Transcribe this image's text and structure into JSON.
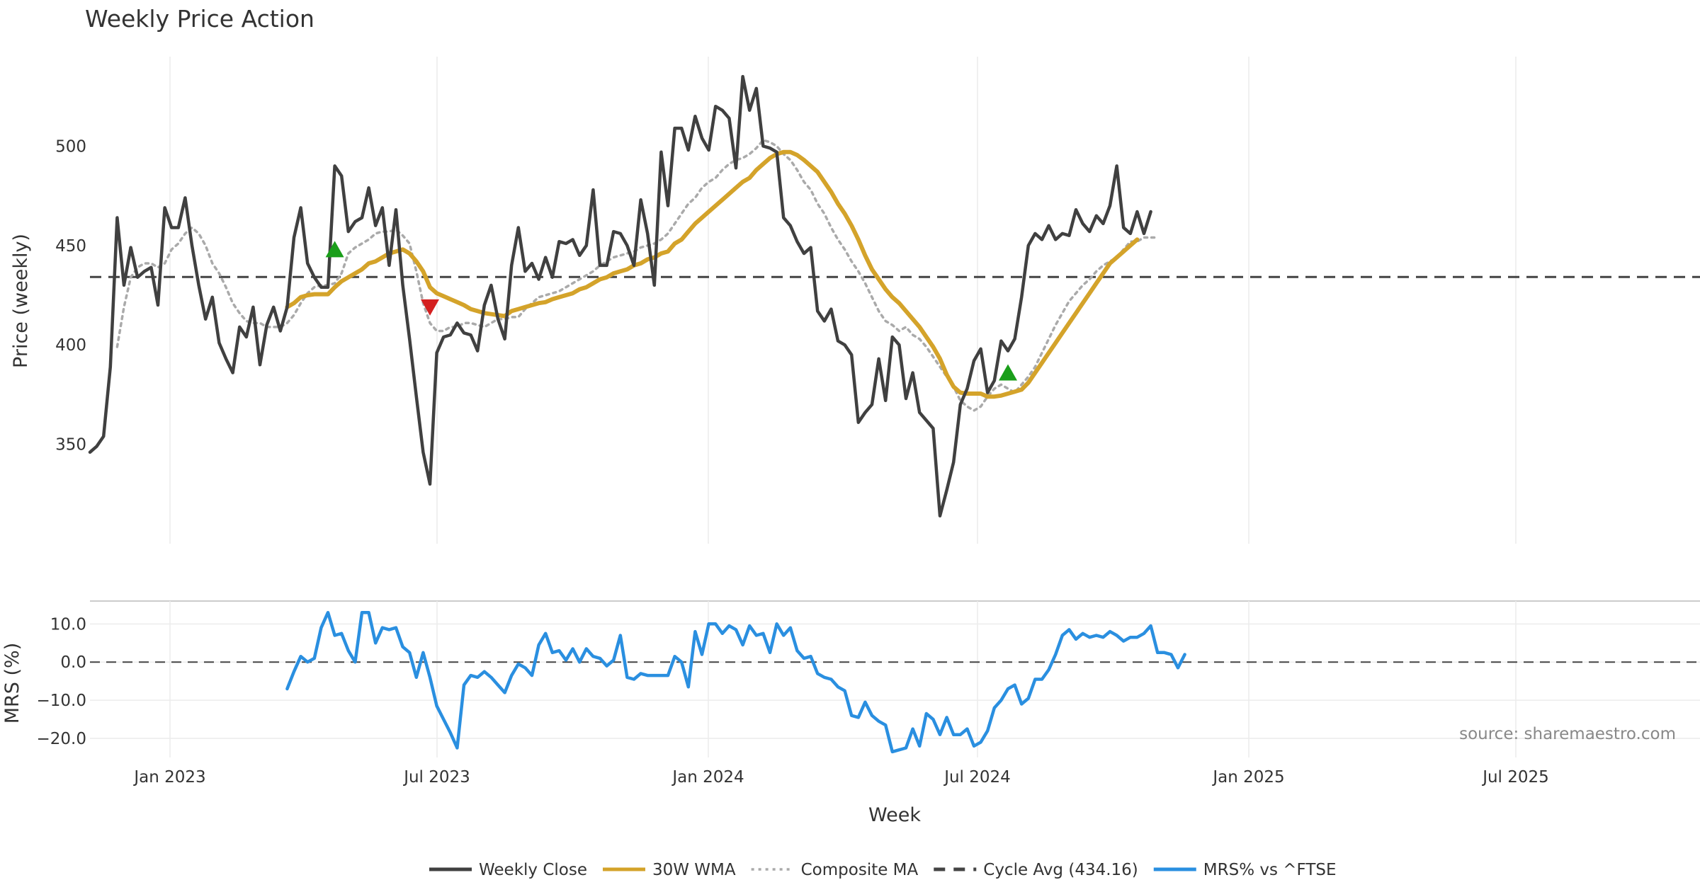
{
  "chart_data": [
    {
      "type": "line",
      "title": "Weekly Price Action",
      "xlabel": "",
      "ylabel": "Price (weekly)",
      "ylim": [
        300,
        545
      ],
      "yticks": [
        350,
        400,
        450,
        500
      ],
      "x_tick_labels": [
        "Jan 2023",
        "Jul 2023",
        "Jan 2024",
        "Jul 2024",
        "Jan 2025",
        "Jul 2025"
      ],
      "x_start": "2022-11-07",
      "cycle_avg": 434.16,
      "series": [
        {
          "name": "Weekly Close",
          "color": "#404040",
          "start_week": 0,
          "values": [
            346,
            349,
            354,
            389,
            464,
            430,
            449,
            434,
            437,
            439,
            420,
            469,
            459,
            459,
            474,
            450,
            430,
            413,
            424,
            401,
            393,
            386,
            409,
            404,
            419,
            390,
            410,
            419,
            407,
            419,
            454,
            469,
            441,
            434,
            429,
            429,
            490,
            485,
            457,
            462,
            464,
            479,
            460,
            469,
            440,
            468,
            430,
            403,
            374,
            346,
            330,
            396,
            404,
            405,
            411,
            406,
            405,
            397,
            420,
            430,
            413,
            403,
            440,
            459,
            437,
            441,
            433,
            444,
            434,
            452,
            451,
            453,
            445,
            450,
            478,
            440,
            440,
            457,
            456,
            450,
            440,
            473,
            456,
            430,
            497,
            470,
            509,
            509,
            498,
            515,
            504,
            498,
            520,
            518,
            514,
            489,
            535,
            518,
            529,
            500,
            499,
            497,
            464,
            460,
            452,
            446,
            449,
            417,
            412,
            418,
            402,
            400,
            395,
            361,
            366,
            370,
            393,
            372,
            404,
            400,
            373,
            386,
            366,
            362,
            358,
            314,
            327,
            341,
            370,
            378,
            392,
            398,
            376,
            382,
            402,
            397,
            403,
            424,
            450,
            456,
            453,
            460,
            453,
            456,
            455,
            468,
            461,
            457,
            465,
            461,
            470,
            490,
            459,
            456,
            467,
            456,
            467
          ]
        },
        {
          "name": "30W WMA",
          "color": "#d4a32a",
          "start_week": 29,
          "values": [
            419,
            421,
            424,
            425,
            425.5,
            425.5,
            425.5,
            429,
            432,
            434,
            436,
            438,
            441,
            442,
            444,
            446,
            447,
            448,
            446,
            442,
            437,
            429,
            426,
            424.5,
            423,
            421.5,
            420,
            418,
            417,
            416,
            415.5,
            415,
            414.5,
            417,
            418,
            419,
            420,
            421,
            421.5,
            423,
            424,
            425,
            426,
            428,
            429,
            431,
            433,
            434,
            436,
            437,
            438,
            440,
            441,
            443,
            444,
            446,
            447,
            451,
            453,
            457,
            461,
            464,
            467,
            470,
            473,
            476,
            479,
            482,
            484,
            488,
            491,
            494,
            496,
            497,
            497,
            495.5,
            493,
            490,
            487,
            482,
            477,
            471,
            466,
            460,
            453,
            445,
            438,
            433,
            428,
            424,
            421,
            417,
            413,
            409,
            404,
            399,
            393,
            385,
            379,
            376,
            375.5,
            375.5,
            375.5,
            374,
            374,
            374.5,
            375.5,
            376.5,
            377.5,
            381,
            386,
            391,
            396,
            401,
            406,
            411,
            416,
            421,
            426,
            431,
            436,
            441,
            444,
            447,
            450,
            453
          ]
        },
        {
          "name": "Composite MA",
          "color": "#aaaaaa",
          "start_week": 4,
          "values": [
            399,
            419,
            434,
            439,
            441,
            441,
            439,
            441,
            448,
            451,
            456,
            459,
            456,
            450,
            441,
            436,
            429,
            421,
            416,
            412,
            411,
            411,
            409,
            409,
            409,
            411,
            415,
            421,
            426,
            429,
            430,
            430,
            431,
            436,
            446,
            449,
            451,
            453,
            456,
            457,
            457,
            458,
            455,
            451,
            437,
            421,
            411,
            407,
            407,
            409,
            409,
            411,
            411,
            410,
            409,
            411,
            413,
            413,
            414,
            414,
            418,
            421,
            424,
            425,
            426,
            427,
            429,
            431,
            433,
            435,
            437,
            440,
            442,
            444,
            445,
            446,
            447,
            449,
            450,
            451,
            453,
            456,
            461,
            466,
            471,
            474,
            479,
            482,
            484,
            488,
            491,
            493,
            494,
            496,
            499,
            503,
            502,
            500,
            496,
            493,
            488,
            482,
            478,
            471,
            466,
            459,
            453,
            448,
            442,
            437,
            431,
            424,
            417,
            412,
            410,
            407,
            409,
            405,
            403,
            399,
            394,
            389,
            384,
            379,
            372,
            369,
            367,
            369,
            374,
            378,
            380,
            378,
            376,
            380,
            384,
            389,
            396,
            403,
            410,
            416,
            422,
            426,
            430,
            433,
            437,
            440,
            442,
            444,
            448,
            452,
            452,
            454,
            454,
            454
          ]
        }
      ],
      "markers": [
        {
          "type": "buy",
          "shape": "triangle-up",
          "color": "#1a9e1a",
          "week": 36,
          "value": 448
        },
        {
          "type": "sell",
          "shape": "triangle-down",
          "color": "#d42020",
          "week": 50,
          "value": 419
        },
        {
          "type": "buy",
          "shape": "triangle-up",
          "color": "#1a9e1a",
          "week": 135,
          "value": 386
        }
      ]
    },
    {
      "type": "line",
      "title": "",
      "xlabel": "Week",
      "ylabel": "MRS (%)",
      "ylim": [
        -25,
        16
      ],
      "yticks": [
        -20.0,
        -10.0,
        0.0,
        10.0
      ],
      "ytick_labels": [
        "−20.0",
        "−10.0",
        "0.0",
        "10.0"
      ],
      "x_tick_labels": [
        "Jan 2023",
        "Jul 2023",
        "Jan 2024",
        "Jul 2024",
        "Jan 2025",
        "Jul 2025"
      ],
      "zero_line": 0,
      "series": [
        {
          "name": "MRS% vs ^FTSE",
          "color": "#2a8fe0",
          "start_week": 29,
          "values": [
            -7,
            -2.5,
            1.5,
            0,
            1,
            9,
            13,
            7,
            7.5,
            3,
            0,
            13,
            13,
            5,
            9,
            8.5,
            9,
            4,
            2.5,
            -4,
            2.5,
            -4,
            -11.5,
            -15,
            -18.5,
            -22.5,
            -6,
            -3.5,
            -4,
            -2.5,
            -4,
            -6,
            -8,
            -3.5,
            -0.5,
            -1.5,
            -3.5,
            4.5,
            7.5,
            2.5,
            3,
            0.5,
            3.5,
            0,
            3.5,
            1.5,
            1,
            -1,
            0.5,
            7,
            -4,
            -4.5,
            -3,
            -3.5,
            -3.5,
            -3.5,
            -3.5,
            1.5,
            0,
            -6.5,
            8,
            2,
            10,
            10,
            7.5,
            9.5,
            8.5,
            4.5,
            9.5,
            7,
            7.5,
            2.5,
            10,
            7,
            9,
            3,
            1,
            1.5,
            -3,
            -4,
            -4.5,
            -6.5,
            -7.5,
            -14,
            -14.5,
            -10.5,
            -14,
            -15.5,
            -16.5,
            -23.5,
            -23,
            -22.5,
            -17.5,
            -22,
            -13.5,
            -15,
            -19,
            -14.5,
            -19,
            -19,
            -17.5,
            -22,
            -21,
            -18,
            -12,
            -10,
            -7,
            -6,
            -11,
            -9.5,
            -4.5,
            -4.5,
            -2,
            2,
            7,
            8.5,
            6,
            7.5,
            6.5,
            7,
            6.5,
            8,
            7,
            5.5,
            6.5,
            6.5,
            7.5,
            9.5,
            2.5,
            2.5,
            2,
            -1.5,
            2
          ]
        }
      ],
      "source_text": "source: sharemaestro.com"
    }
  ],
  "legend": [
    {
      "label": "Weekly Close",
      "color": "#404040",
      "style": "solid"
    },
    {
      "label": "30W WMA",
      "color": "#d4a32a",
      "style": "solid"
    },
    {
      "label": "Composite MA",
      "color": "#aaaaaa",
      "style": "dotted"
    },
    {
      "label": "Cycle Avg (434.16)",
      "color": "#444444",
      "style": "dashed"
    },
    {
      "label": "MRS% vs ^FTSE",
      "color": "#2a8fe0",
      "style": "solid"
    }
  ]
}
